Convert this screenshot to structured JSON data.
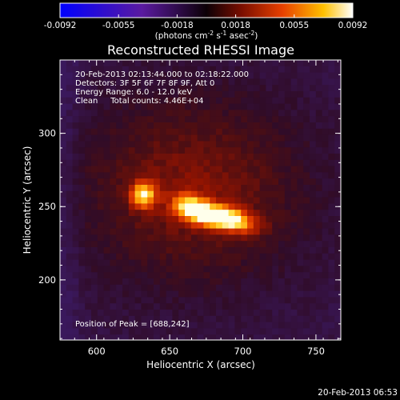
{
  "chart_data": {
    "type": "heatmap",
    "title": "Reconstructed RHESSI Image",
    "xlabel": "Heliocentric X (arcsec)",
    "ylabel": "Heliocentric Y (arcsec)",
    "xlim": [
      575,
      767
    ],
    "ylim": [
      159,
      350
    ],
    "xticks": [
      600,
      650,
      700,
      750
    ],
    "yticks": [
      200,
      250,
      300
    ],
    "colorbar": {
      "min": -0.0092,
      "max": 0.0092,
      "ticks": [
        "-0.0092",
        "-0.0055",
        "-0.0018",
        "0.0018",
        "0.0055",
        "0.0092"
      ],
      "label": "(photons cm",
      "label_sup1": "-2",
      "label_mid": " s",
      "label_sup2": "-1",
      "label_end": " asec",
      "label_sup3": "-2",
      "label_close": ")"
    },
    "annotations": [
      "20-Feb-2013 02:13:44.000 to 02:18:22.000",
      "Detectors: 3F 5F 6F 7F 8F 9F, Att 0",
      "Energy Range: 6.0 - 12.0 keV",
      "Clean     Total counts: 4.46E+04"
    ],
    "peak_label": "Position of Peak = [688,242]",
    "sources": [
      {
        "x": 688,
        "y": 242,
        "sx": 14,
        "sy": 5.5,
        "amp": 1.0,
        "angle": -12
      },
      {
        "x": 665,
        "y": 249,
        "sx": 9,
        "sy": 6,
        "amp": 0.75,
        "angle": -20
      },
      {
        "x": 632,
        "y": 258,
        "sx": 6,
        "sy": 6,
        "amp": 0.8,
        "angle": 0
      }
    ]
  },
  "footer": {
    "timestamp": "20-Feb-2013 06:53"
  }
}
